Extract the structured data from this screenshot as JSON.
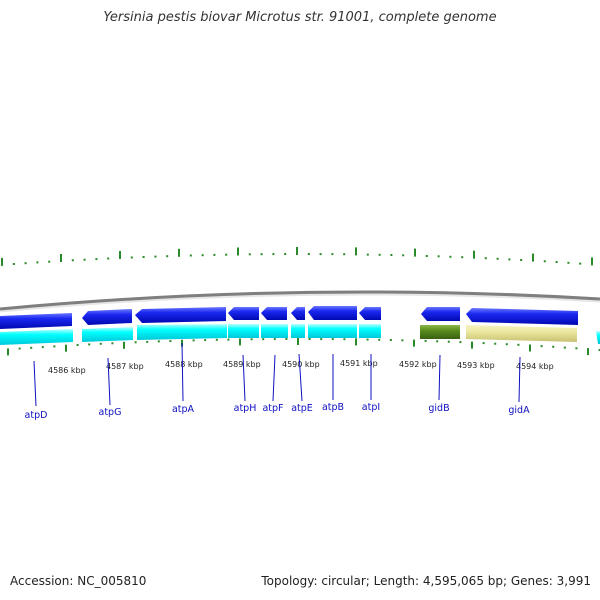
{
  "title": "Yersinia pestis biovar Microtus str. 91001, complete genome",
  "footer": {
    "accession": "Accession: NC_005810",
    "summary": "Topology: circular; Length: 4,595,065 bp; Genes: 3,991"
  },
  "scale_labels": [
    "4586 kbp",
    "4587 kbp",
    "4588 kbp",
    "4589 kbp",
    "4590 kbp",
    "4591 kbp",
    "4592 kbp",
    "4593 kbp",
    "4594 kbp"
  ],
  "genes": [
    {
      "name": "atpD",
      "strand": "minus"
    },
    {
      "name": "atpG",
      "strand": "minus"
    },
    {
      "name": "atpA",
      "strand": "minus"
    },
    {
      "name": "atpH",
      "strand": "minus"
    },
    {
      "name": "atpF",
      "strand": "minus"
    },
    {
      "name": "atpE",
      "strand": "minus"
    },
    {
      "name": "atpB",
      "strand": "minus"
    },
    {
      "name": "atpI",
      "strand": "minus"
    },
    {
      "name": "gidB",
      "strand": "minus"
    },
    {
      "name": "gidA",
      "strand": "minus"
    }
  ],
  "colors": {
    "backbone": "#808080",
    "cds": "#0a14e6",
    "cog_cyan": "#00ffff",
    "cog_green": "#5a8c1e",
    "cog_khaki": "#ece8a0",
    "tick": "#2a8a2a",
    "label": "#1010c0"
  }
}
